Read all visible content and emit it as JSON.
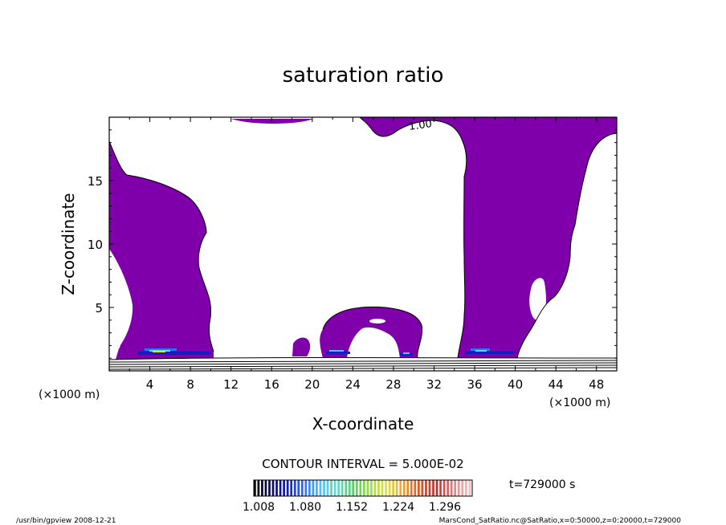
{
  "chart_data": {
    "type": "heatmap",
    "title": "saturation ratio",
    "xlabel": "X-coordinate",
    "ylabel": "Z-coordinate",
    "x_unit": "(×1000 m)",
    "y_unit": "(×1000 m)",
    "xlim": [
      0,
      50
    ],
    "ylim": [
      0,
      20
    ],
    "x_ticks": [
      4,
      8,
      12,
      16,
      20,
      24,
      28,
      32,
      36,
      40,
      44,
      48
    ],
    "y_ticks": [
      5,
      10,
      15
    ],
    "contour_label": "1.00",
    "contour_interval": "CONTOUR INTERVAL = 5.000E-02",
    "time_label": "t=729000 s",
    "colorbar": {
      "ticks": [
        "1.008",
        "1.080",
        "1.152",
        "1.224",
        "1.296"
      ],
      "colors": [
        "#000000",
        "#0a0a60",
        "#1020c0",
        "#3070ff",
        "#50c0ff",
        "#60e0c0",
        "#50d060",
        "#a0e040",
        "#e0e040",
        "#f0a030",
        "#e05020",
        "#c03030",
        "#e08080",
        "#f0c0c0"
      ]
    },
    "fill_color": "#7f00aa",
    "footer_left": "/usr/bin/gpview   2008-12-21",
    "footer_right": "MarsCond_SatRatio.nc@SatRatio,x=0:50000,z=0:20000,t=729000"
  }
}
